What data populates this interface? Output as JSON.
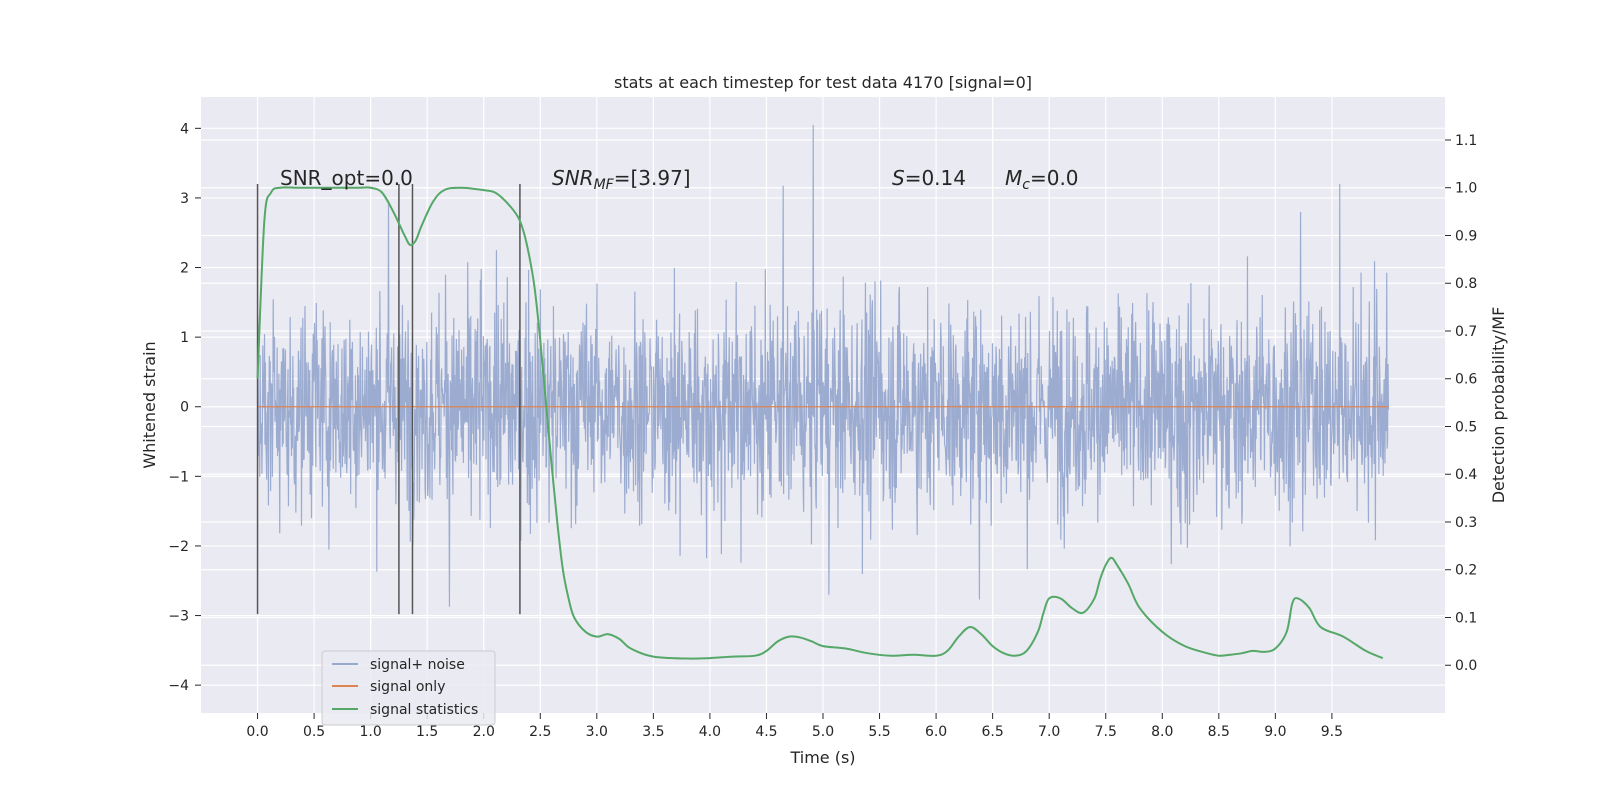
{
  "chart_data": {
    "type": "line",
    "title": "stats at each timestep for test data 4170 [signal=0]",
    "xlabel": "Time (s)",
    "ylabel_left": "Whitened strain",
    "ylabel_right": "Detection probability/MF",
    "xlim": [
      -0.5,
      10.5
    ],
    "ylim_left": [
      -4.4,
      4.45
    ],
    "ylim_right": [
      -0.1,
      1.19
    ],
    "x_ticks": [
      "0.0",
      "0.5",
      "1.0",
      "1.5",
      "2.0",
      "2.5",
      "3.0",
      "3.5",
      "4.0",
      "4.5",
      "5.0",
      "5.5",
      "6.0",
      "6.5",
      "7.0",
      "7.5",
      "8.0",
      "8.5",
      "9.0",
      "9.5"
    ],
    "y_ticks_left": [
      "−4",
      "−3",
      "−2",
      "−1",
      "0",
      "1",
      "2",
      "3",
      "4"
    ],
    "y_ticks_right": [
      "0.0",
      "0.1",
      "0.2",
      "0.3",
      "0.4",
      "0.5",
      "0.6",
      "0.7",
      "0.8",
      "0.9",
      "1.0",
      "1.1"
    ],
    "grid": true,
    "legend_position": "lower-left",
    "colors": {
      "background": "#eaeaf2",
      "grid": "#ffffff",
      "noise": "#98a9cf",
      "signal_only": "#dd8452",
      "statistics": "#55a868",
      "vlines": "#555555"
    },
    "annotations": {
      "snr_opt": "SNR_opt=0.0",
      "snr_mf_prefix": "SNR",
      "snr_mf_sub": "MF",
      "snr_mf_suffix": "=[3.97]",
      "s_prefix": "S",
      "s_suffix": "=0.14",
      "mc_prefix": "M",
      "mc_sub": "c",
      "mc_suffix": "=0.0"
    },
    "vertical_lines_x": [
      0.0,
      1.25,
      1.37,
      2.32
    ],
    "series": [
      {
        "name": "signal+ noise",
        "axis": "left",
        "description_type": "noise",
        "x_range": [
          0.0,
          10.0
        ],
        "std": 0.75,
        "envelope": [
          -1.85,
          1.9
        ]
      },
      {
        "name": "signal only",
        "axis": "left",
        "x": [
          0.0,
          10.0
        ],
        "y": [
          0.0,
          0.0
        ]
      },
      {
        "name": "signal statistics",
        "axis": "right",
        "x": [
          0.0,
          0.06,
          0.12,
          0.2,
          0.35,
          0.5,
          0.7,
          0.9,
          1.0,
          1.1,
          1.2,
          1.3,
          1.35,
          1.4,
          1.45,
          1.55,
          1.65,
          1.8,
          2.0,
          2.1,
          2.2,
          2.3,
          2.35,
          2.4,
          2.45,
          2.5,
          2.55,
          2.6,
          2.65,
          2.7,
          2.75,
          2.8,
          2.9,
          3.0,
          3.1,
          3.2,
          3.3,
          3.5,
          3.8,
          4.0,
          4.2,
          4.4,
          4.5,
          4.6,
          4.7,
          4.8,
          4.9,
          5.0,
          5.2,
          5.4,
          5.6,
          5.8,
          6.0,
          6.1,
          6.2,
          6.3,
          6.4,
          6.5,
          6.6,
          6.7,
          6.8,
          6.9,
          6.95,
          7.0,
          7.1,
          7.2,
          7.3,
          7.4,
          7.45,
          7.5,
          7.55,
          7.6,
          7.7,
          7.8,
          8.0,
          8.2,
          8.4,
          8.5,
          8.6,
          8.7,
          8.8,
          8.9,
          9.0,
          9.1,
          9.15,
          9.2,
          9.3,
          9.4,
          9.6,
          9.8,
          9.95
        ],
        "y": [
          0.6,
          0.93,
          0.99,
          1.0,
          1.0,
          1.0,
          1.0,
          1.0,
          1.0,
          0.99,
          0.95,
          0.9,
          0.88,
          0.89,
          0.92,
          0.97,
          0.995,
          1.0,
          0.995,
          0.99,
          0.97,
          0.94,
          0.91,
          0.86,
          0.79,
          0.68,
          0.55,
          0.42,
          0.3,
          0.2,
          0.14,
          0.1,
          0.07,
          0.06,
          0.065,
          0.055,
          0.035,
          0.018,
          0.014,
          0.015,
          0.018,
          0.02,
          0.03,
          0.05,
          0.06,
          0.058,
          0.05,
          0.04,
          0.035,
          0.025,
          0.02,
          0.022,
          0.02,
          0.03,
          0.06,
          0.08,
          0.065,
          0.04,
          0.025,
          0.02,
          0.03,
          0.07,
          0.11,
          0.14,
          0.14,
          0.12,
          0.11,
          0.14,
          0.18,
          0.21,
          0.225,
          0.21,
          0.17,
          0.12,
          0.07,
          0.04,
          0.025,
          0.02,
          0.022,
          0.025,
          0.03,
          0.028,
          0.035,
          0.07,
          0.13,
          0.14,
          0.12,
          0.08,
          0.06,
          0.03,
          0.015
        ]
      }
    ]
  }
}
